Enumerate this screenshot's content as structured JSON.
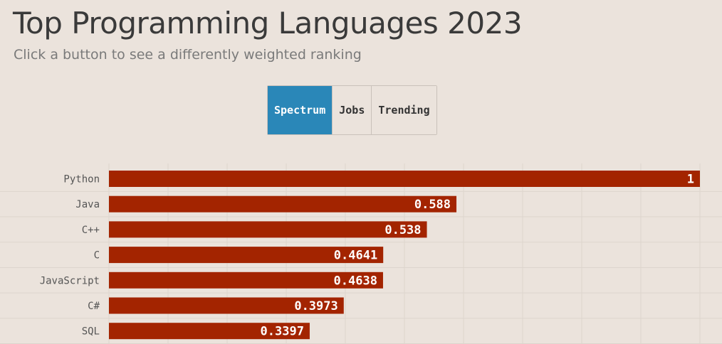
{
  "header": {
    "title": "Top Programming Languages 2023",
    "subtitle": "Click a button to see a differently weighted ranking"
  },
  "buttons": [
    {
      "label": "Spectrum",
      "active": true
    },
    {
      "label": "Jobs",
      "active": false
    },
    {
      "label": "Trending",
      "active": false
    }
  ],
  "colors": {
    "background": "#ebe3dc",
    "bar": "#a32400",
    "active_button": "#2a87b8",
    "grid": "#ddd5cd"
  },
  "chart_data": {
    "type": "bar",
    "orientation": "horizontal",
    "categories": [
      "Python",
      "Java",
      "C++",
      "C",
      "JavaScript",
      "C#",
      "SQL"
    ],
    "values": [
      1,
      0.588,
      0.538,
      0.4641,
      0.4638,
      0.3973,
      0.3397
    ],
    "value_labels": [
      "1",
      "0.588",
      "0.538",
      "0.4641",
      "0.4638",
      "0.3973",
      "0.3397"
    ],
    "xlim": [
      0,
      1
    ],
    "grid": true,
    "legend": "none"
  }
}
